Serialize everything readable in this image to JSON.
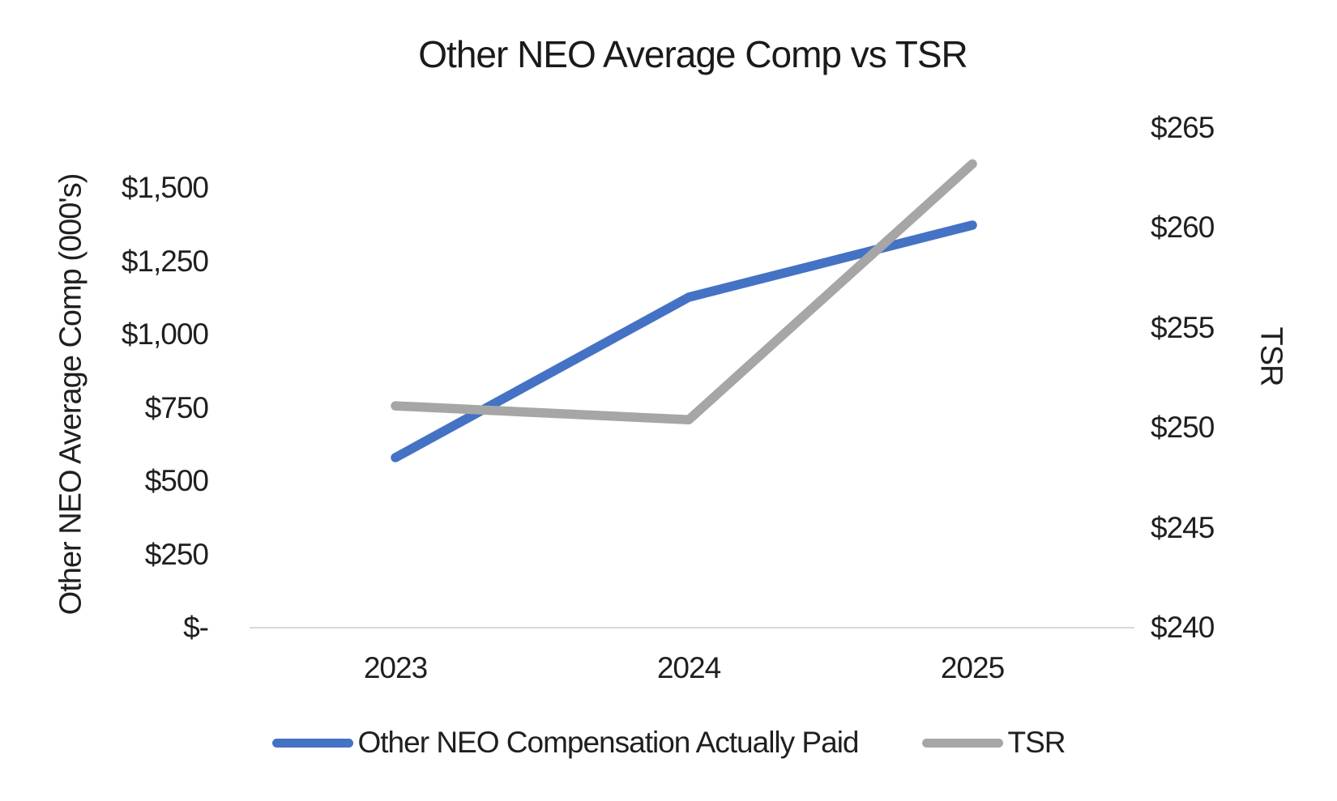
{
  "chart_data": {
    "type": "line",
    "title": "Other NEO Average Comp vs TSR",
    "categories": [
      "2023",
      "2024",
      "2025"
    ],
    "series": [
      {
        "name": "Other NEO Compensation Actually Paid",
        "axis": "left",
        "color": "#4472C4",
        "values": [
          580,
          1127,
          1373
        ]
      },
      {
        "name": "TSR",
        "axis": "right",
        "color": "#A6A6A6",
        "values": [
          251.1,
          250.4,
          263.2
        ]
      }
    ],
    "left_axis": {
      "title": "Other NEO Average Comp (000's)",
      "range": [
        0,
        1500
      ],
      "tick_labels": [
        "$1,500",
        "$1,250",
        "$1,000",
        "$750",
        "$500",
        "$250",
        "$-"
      ]
    },
    "right_axis": {
      "title": "TSR",
      "range": [
        240,
        265
      ],
      "tick_labels": [
        "$265",
        "$260",
        "$255",
        "$250",
        "$245",
        "$240"
      ]
    },
    "x_axis": {
      "labels": [
        "2023",
        "2024",
        "2025"
      ]
    },
    "legend": {
      "position": "bottom",
      "entries": [
        {
          "label": "Other NEO Compensation Actually Paid",
          "color": "#4472C4"
        },
        {
          "label": "TSR",
          "color": "#A6A6A6"
        }
      ]
    },
    "gridlines": "baseline only",
    "baseline_color": "#D9D9D9",
    "background_color": "#FFFFFF",
    "text_color": "#1F1F1F"
  }
}
